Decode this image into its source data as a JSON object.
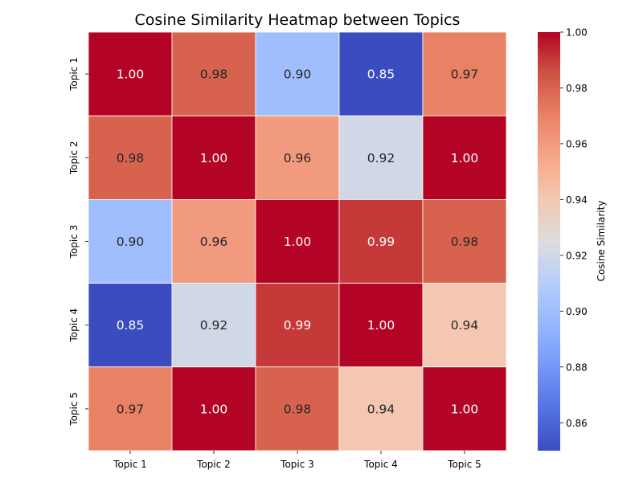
{
  "chart_data": {
    "type": "heatmap",
    "title": "Cosine Similarity Heatmap between Topics",
    "x_categories": [
      "Topic 1",
      "Topic 2",
      "Topic 3",
      "Topic 4",
      "Topic 5"
    ],
    "y_categories": [
      "Topic 1",
      "Topic 2",
      "Topic 3",
      "Topic 4",
      "Topic 5"
    ],
    "values": [
      [
        1.0,
        0.98,
        0.9,
        0.85,
        0.97
      ],
      [
        0.98,
        1.0,
        0.96,
        0.92,
        1.0
      ],
      [
        0.9,
        0.96,
        1.0,
        0.99,
        0.98
      ],
      [
        0.85,
        0.92,
        0.99,
        1.0,
        0.94
      ],
      [
        0.97,
        1.0,
        0.98,
        0.94,
        1.0
      ]
    ],
    "annotations": [
      [
        "1.00",
        "0.98",
        "0.90",
        "0.85",
        "0.97"
      ],
      [
        "0.98",
        "1.00",
        "0.96",
        "0.92",
        "1.00"
      ],
      [
        "0.90",
        "0.96",
        "1.00",
        "0.99",
        "0.98"
      ],
      [
        "0.85",
        "0.92",
        "0.99",
        "1.00",
        "0.94"
      ],
      [
        "0.97",
        "1.00",
        "0.98",
        "0.94",
        "1.00"
      ]
    ],
    "colormap": "coolwarm",
    "colorbar": {
      "label": "Cosine Similarity",
      "range": [
        0.85,
        1.0
      ],
      "ticks": [
        0.86,
        0.88,
        0.9,
        0.92,
        0.94,
        0.96,
        0.98,
        1.0
      ],
      "tick_labels": [
        "0.86",
        "0.88",
        "0.90",
        "0.92",
        "0.94",
        "0.96",
        "0.98",
        "1.00"
      ]
    },
    "grid": false,
    "cell_border_color": "#ffffff"
  }
}
